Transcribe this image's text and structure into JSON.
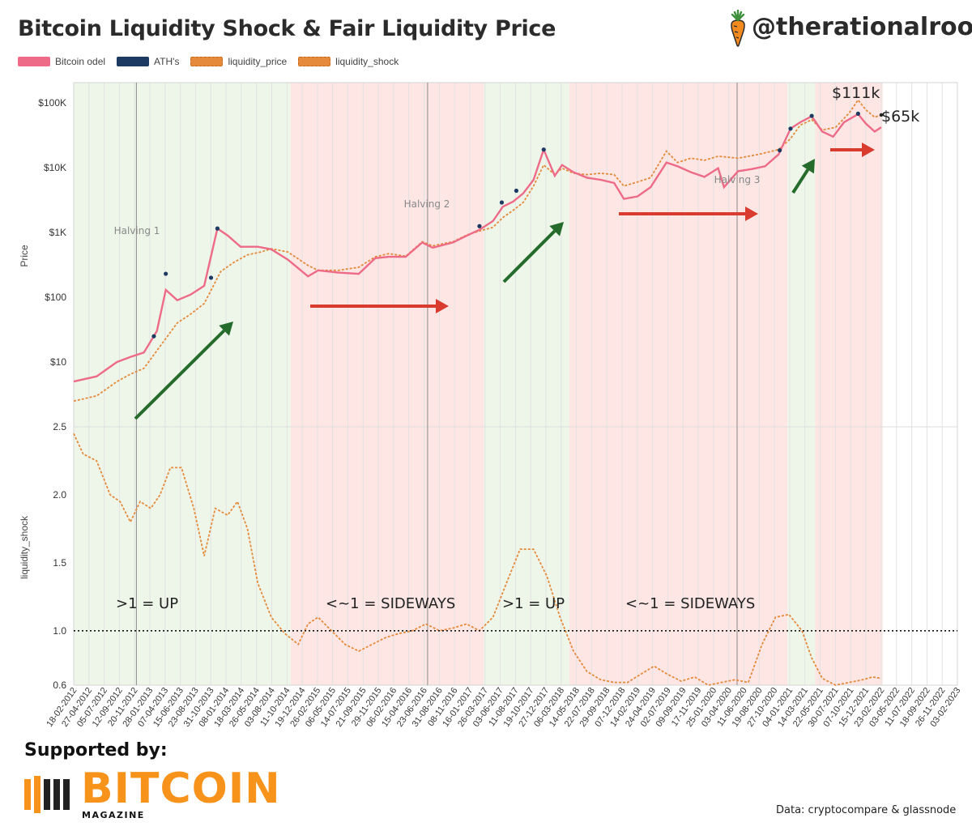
{
  "header": {
    "title": "Bitcoin Liquidity Shock & Fair Liquidity Price",
    "handle": "@therationalroot"
  },
  "legend": [
    {
      "label": "Bitcoin odel",
      "color": "#ee6b88"
    },
    {
      "label": "ATH's",
      "color": "#1d3a63"
    },
    {
      "label": "liquidity_price",
      "color": "#e58a3a"
    },
    {
      "label": "liquidity_shock",
      "color": "#e58a3a"
    }
  ],
  "footer": {
    "supported_by": "Supported by:",
    "brand": "BITCOIN",
    "brand_sub": "MAGAZINE",
    "source": "Data: cryptocompare & glassnode"
  },
  "colors": {
    "price": "#ee6b88",
    "ath": "#1d3a63",
    "liquidity": "#e58a3a",
    "green_zone": "#eef6ea",
    "red_zone": "#fde6e4",
    "arrow_up": "#256b2b",
    "arrow_side": "#d93b2f"
  },
  "chart_data": {
    "type": "line",
    "x_axis": {
      "type": "date",
      "tick_labels": [
        "18-02-2012",
        "27-04-2012",
        "05-07-2012",
        "12-09-2012",
        "20-11-2012",
        "28-01-2013",
        "07-04-2013",
        "15-06-2013",
        "23-08-2013",
        "31-10-2013",
        "08-01-2014",
        "18-03-2014",
        "26-05-2014",
        "03-08-2014",
        "11-10-2014",
        "19-12-2014",
        "26-02-2015",
        "06-05-2015",
        "14-07-2015",
        "21-09-2015",
        "29-11-2015",
        "06-02-2016",
        "15-04-2016",
        "23-06-2016",
        "31-08-2016",
        "08-11-2016",
        "16-01-2017",
        "26-03-2017",
        "03-06-2017",
        "11-08-2017",
        "19-10-2017",
        "27-12-2017",
        "06-03-2018",
        "14-05-2018",
        "22-07-2018",
        "29-09-2018",
        "07-12-2018",
        "14-02-2019",
        "24-04-2019",
        "02-07-2019",
        "09-09-2019",
        "17-11-2019",
        "25-01-2020",
        "03-04-2020",
        "11-06-2020",
        "19-08-2020",
        "27-10-2020",
        "04-01-2021",
        "14-03-2021",
        "22-05-2021",
        "30-07-2021",
        "07-10-2021",
        "15-12-2021",
        "23-02-2022",
        "03-05-2022",
        "11-07-2022",
        "18-09-2022",
        "26-11-2022",
        "03-02-2023"
      ]
    },
    "top_panel": {
      "ylabel": "Price",
      "scale": "log",
      "y_tick_labels": [
        "$10",
        "$100",
        "$1K",
        "$10K",
        "$100K"
      ],
      "series": [
        {
          "name": "Bitcoin odel",
          "x": [
            "2012-02-18",
            "2012-06-01",
            "2012-09-01",
            "2012-11-01",
            "2013-01-01",
            "2013-03-01",
            "2013-04-10",
            "2013-06-01",
            "2013-08-01",
            "2013-10-01",
            "2013-11-30",
            "2014-01-15",
            "2014-03-15",
            "2014-06-01",
            "2014-08-01",
            "2014-10-15",
            "2015-01-14",
            "2015-03-01",
            "2015-06-01",
            "2015-09-01",
            "2015-11-15",
            "2016-01-15",
            "2016-04-01",
            "2016-06-15",
            "2016-08-01",
            "2016-11-01",
            "2017-01-05",
            "2017-03-01",
            "2017-05-01",
            "2017-06-15",
            "2017-08-01",
            "2017-09-15",
            "2017-11-01",
            "2017-12-17",
            "2018-02-05",
            "2018-03-10",
            "2018-05-01",
            "2018-07-01",
            "2018-09-01",
            "2018-11-01",
            "2018-12-15",
            "2019-02-15",
            "2019-04-15",
            "2019-06-26",
            "2019-08-15",
            "2019-10-15",
            "2019-12-15",
            "2020-02-15",
            "2020-03-13",
            "2020-05-15",
            "2020-07-15",
            "2020-09-15",
            "2020-11-15",
            "2021-01-08",
            "2021-02-20",
            "2021-04-14",
            "2021-06-01",
            "2021-07-20",
            "2021-09-07",
            "2021-11-10",
            "2021-12-15",
            "2022-01-24",
            "2022-02-23"
          ],
          "y": [
            5,
            6,
            10,
            12,
            14,
            30,
            130,
            90,
            110,
            150,
            1150,
            900,
            600,
            600,
            550,
            380,
            210,
            260,
            240,
            230,
            400,
            420,
            420,
            700,
            580,
            700,
            900,
            1100,
            1500,
            2500,
            3000,
            4000,
            6500,
            19000,
            7500,
            11000,
            8500,
            7000,
            6500,
            5800,
            3300,
            3600,
            5000,
            12000,
            10500,
            8500,
            7200,
            9800,
            5000,
            8800,
            9500,
            10500,
            16000,
            40000,
            50000,
            62000,
            36000,
            30000,
            50000,
            67000,
            48000,
            36000,
            42000
          ]
        },
        {
          "name": "ATH's",
          "x": [
            "2013-02-15",
            "2013-04-10",
            "2013-11-01",
            "2013-11-30",
            "2017-03-01",
            "2017-06-10",
            "2017-08-15",
            "2017-12-17",
            "2020-11-20",
            "2021-01-08",
            "2021-04-14",
            "2021-11-10"
          ],
          "y": [
            25,
            230,
            200,
            1150,
            1250,
            2900,
            4400,
            19000,
            18500,
            40000,
            63000,
            68000
          ]
        },
        {
          "name": "liquidity_price",
          "x": [
            "2012-02-18",
            "2012-06-01",
            "2012-09-01",
            "2012-11-01",
            "2013-01-01",
            "2013-03-01",
            "2013-06-01",
            "2013-08-01",
            "2013-10-01",
            "2013-12-15",
            "2014-02-15",
            "2014-04-15",
            "2014-06-15",
            "2014-08-01",
            "2014-10-15",
            "2015-01-14",
            "2015-03-01",
            "2015-06-01",
            "2015-09-01",
            "2015-11-15",
            "2016-01-15",
            "2016-04-01",
            "2016-06-15",
            "2016-08-01",
            "2016-11-01",
            "2017-01-05",
            "2017-03-01",
            "2017-05-01",
            "2017-06-15",
            "2017-08-01",
            "2017-09-15",
            "2017-11-01",
            "2017-12-17",
            "2018-02-05",
            "2018-03-10",
            "2018-05-01",
            "2018-07-01",
            "2018-09-01",
            "2018-11-01",
            "2018-12-15",
            "2019-02-15",
            "2019-04-15",
            "2019-06-26",
            "2019-08-15",
            "2019-10-15",
            "2019-12-15",
            "2020-02-15",
            "2020-05-15",
            "2020-08-15",
            "2020-11-15",
            "2021-01-08",
            "2021-02-20",
            "2021-04-14",
            "2021-06-01",
            "2021-08-01",
            "2021-10-01",
            "2021-11-10",
            "2021-12-15",
            "2022-01-24",
            "2022-02-23"
          ],
          "y": [
            2.5,
            3,
            5,
            6.5,
            8,
            15,
            40,
            55,
            80,
            250,
            350,
            450,
            500,
            560,
            500,
            310,
            260,
            260,
            290,
            420,
            470,
            430,
            720,
            620,
            720,
            920,
            1050,
            1200,
            1700,
            2200,
            2900,
            5200,
            11000,
            7800,
            9800,
            8200,
            7800,
            8200,
            7800,
            5200,
            6000,
            7000,
            18000,
            12000,
            14000,
            13000,
            15000,
            14000,
            16000,
            19000,
            28000,
            45000,
            55000,
            38000,
            42000,
            70000,
            111000,
            78000,
            60000,
            65000
          ]
        }
      ],
      "annotations": [
        "Halving 1",
        "Halving 2",
        "Halving 3",
        "$111k",
        "$65k"
      ]
    },
    "bottom_panel": {
      "ylabel": "liquidity_shock",
      "y_tick_labels": [
        "0.6",
        "1.0",
        "1.5",
        "2.0",
        "2.5"
      ],
      "ylim": [
        0.6,
        2.5
      ],
      "reference_line": 1.0,
      "series": [
        {
          "name": "liquidity_shock",
          "x": [
            "2012-02-18",
            "2012-04-01",
            "2012-06-01",
            "2012-08-01",
            "2012-09-15",
            "2012-11-01",
            "2012-12-15",
            "2013-02-01",
            "2013-03-15",
            "2013-05-01",
            "2013-06-20",
            "2013-08-15",
            "2013-10-01",
            "2013-11-20",
            "2014-01-15",
            "2014-03-01",
            "2014-04-15",
            "2014-06-01",
            "2014-08-01",
            "2014-10-01",
            "2014-12-01",
            "2015-01-14",
            "2015-03-01",
            "2015-05-01",
            "2015-07-01",
            "2015-09-01",
            "2015-11-01",
            "2016-01-01",
            "2016-03-01",
            "2016-05-01",
            "2016-07-01",
            "2016-09-01",
            "2016-11-01",
            "2017-01-01",
            "2017-03-01",
            "2017-05-01",
            "2017-07-01",
            "2017-09-01",
            "2017-11-01",
            "2018-01-01",
            "2018-03-01",
            "2018-05-01",
            "2018-07-01",
            "2018-09-01",
            "2018-11-01",
            "2019-01-01",
            "2019-03-01",
            "2019-05-01",
            "2019-07-01",
            "2019-09-01",
            "2019-11-01",
            "2020-01-01",
            "2020-03-01",
            "2020-05-01",
            "2020-07-01",
            "2020-09-01",
            "2020-11-01",
            "2021-01-01",
            "2021-03-01",
            "2021-04-14",
            "2021-06-01",
            "2021-08-01",
            "2021-10-01",
            "2021-12-01",
            "2022-01-15",
            "2022-02-23"
          ],
          "y": [
            2.45,
            2.3,
            2.25,
            2.0,
            1.95,
            1.8,
            1.95,
            1.9,
            2.0,
            2.2,
            2.2,
            1.9,
            1.55,
            1.9,
            1.85,
            1.95,
            1.75,
            1.35,
            1.1,
            0.98,
            0.9,
            1.05,
            1.1,
            1.0,
            0.9,
            0.85,
            0.9,
            0.95,
            0.98,
            1.0,
            1.05,
            1.0,
            1.02,
            1.05,
            1.0,
            1.1,
            1.35,
            1.6,
            1.6,
            1.4,
            1.1,
            0.85,
            0.7,
            0.64,
            0.62,
            0.62,
            0.68,
            0.74,
            0.68,
            0.63,
            0.66,
            0.6,
            0.62,
            0.64,
            0.62,
            0.9,
            1.1,
            1.12,
            1.0,
            0.8,
            0.65,
            0.6,
            0.62,
            0.64,
            0.66,
            0.65
          ]
        }
      ],
      "annotations": [
        ">1 = UP",
        "<~1 = SIDEWAYS",
        ">1 = UP",
        "<~1 = SIDEWAYS"
      ]
    },
    "zones": [
      {
        "start": "2012-02-18",
        "end": "2014-10-28",
        "kind": "green"
      },
      {
        "start": "2014-10-28",
        "end": "2017-03-20",
        "kind": "red"
      },
      {
        "start": "2017-03-20",
        "end": "2018-04-12",
        "kind": "green"
      },
      {
        "start": "2018-04-12",
        "end": "2020-12-25",
        "kind": "red"
      },
      {
        "start": "2020-12-25",
        "end": "2021-04-30",
        "kind": "green"
      },
      {
        "start": "2021-04-30",
        "end": "2022-03-01",
        "kind": "red"
      }
    ],
    "halvings": [
      "2012-11-28",
      "2016-07-09",
      "2020-05-11"
    ]
  }
}
